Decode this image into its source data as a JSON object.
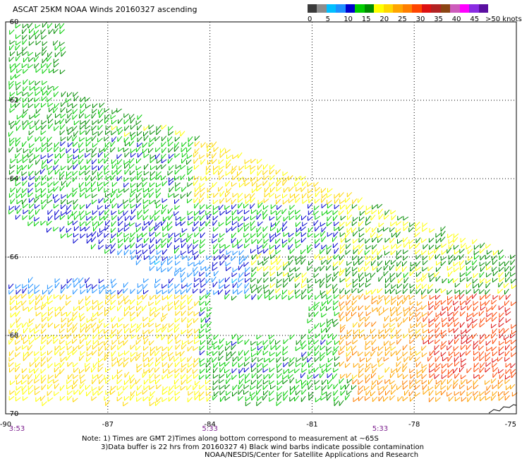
{
  "title": "ASCAT 25KM NOAA Winds 20160327 ascending",
  "colorbar": {
    "colors": [
      "#3a3a3a",
      "#8c8c8c",
      "#00bfff",
      "#1e90ff",
      "#0000cd",
      "#00cd00",
      "#008b00",
      "#ffff00",
      "#ffd700",
      "#ffa500",
      "#ff7f00",
      "#ff4500",
      "#dd1111",
      "#b22222",
      "#8b4513",
      "#cd5cbc",
      "#ff00ff",
      "#8a2be2",
      "#5a0fa0"
    ],
    "labels": [
      "0",
      "5",
      "10",
      "15",
      "20",
      "25",
      "30",
      "35",
      "40",
      "45",
      ">50 knots"
    ]
  },
  "chart_data": {
    "type": "scatter",
    "title": "ASCAT 25KM NOAA Winds 20160327 ascending",
    "x_ticks": [
      "-90",
      "-87",
      "-84",
      "-81",
      "-78",
      "-75"
    ],
    "y_ticks": [
      "-60",
      "-62",
      "-64",
      "-66",
      "-68",
      "-70"
    ],
    "xlim": [
      -90,
      -75
    ],
    "ylim": [
      -70,
      -60
    ],
    "grid": true,
    "time_labels": [
      {
        "lon": -90,
        "text": "3:53"
      },
      {
        "lon": -84,
        "text": "5:33"
      },
      {
        "lon": -79,
        "text": "5:33"
      }
    ],
    "wind_speed_range_knots": [
      0,
      50
    ]
  },
  "notes": {
    "line1": "Note: 1) Times are GMT 2)Times along bottom correspond to measurement at ~65S",
    "line2": "3)Data buffer is 22 hrs from 20160327 4) Black wind barbs indicate possible contamination",
    "line3": "NOAA/NESDIS/Center for Satellite Applications and Research"
  }
}
